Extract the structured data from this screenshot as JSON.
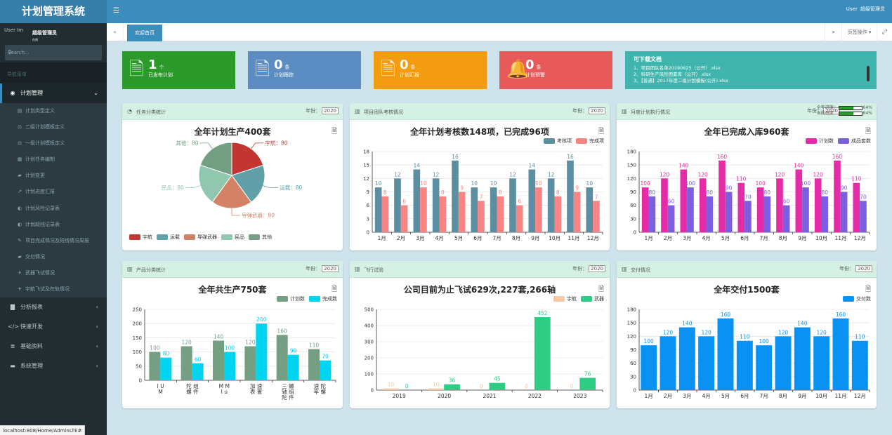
{
  "app": {
    "title": "计划管理系统"
  },
  "user": {
    "name": "超级管理员",
    "avatar_alt": "User Im",
    "header_label": "User",
    "status": "在线"
  },
  "search": {
    "placeholder": "Search..."
  },
  "nav": {
    "header": "导航菜单",
    "plan_mgmt": "计划管理",
    "sub_items": [
      {
        "label": "计划类型定义",
        "icon": "▤"
      },
      {
        "label": "二级计划模板定义",
        "icon": "⚖"
      },
      {
        "label": "一级计划模板定义",
        "icon": "⚖"
      },
      {
        "label": "计划任务编制",
        "icon": "▦"
      },
      {
        "label": "计划变更",
        "icon": "▰"
      },
      {
        "label": "计划进度汇报",
        "icon": "↗"
      },
      {
        "label": "计划风险记录表",
        "icon": "◐"
      },
      {
        "label": "计划超线记录表",
        "icon": "◐"
      },
      {
        "label": "项目完成情况及短线情况周报",
        "icon": "✎"
      },
      {
        "label": "交付情况",
        "icon": "▰"
      },
      {
        "label": "武器飞试情况",
        "icon": "✈"
      },
      {
        "label": "宇航飞试及在轨情况",
        "icon": "✈"
      }
    ],
    "bottom": [
      {
        "label": "分析报表",
        "icon": "▇"
      },
      {
        "label": "快速开发",
        "icon": "</>"
      },
      {
        "label": "基础资料",
        "icon": "≣"
      },
      {
        "label": "系统管理",
        "icon": "▬"
      }
    ]
  },
  "statusbar": {
    "url": "localhost:808/Home/AdminLTE#"
  },
  "tabs": {
    "active": "欢迎首页",
    "ops": "页签操作"
  },
  "infoboxes": [
    {
      "num": "1",
      "unit": "个",
      "label": "已发布计划",
      "color": "#2b9a2b",
      "icon": "doc"
    },
    {
      "num": "0",
      "unit": "条",
      "label": "计划跟踪",
      "color": "#5b8dc2",
      "icon": "doc"
    },
    {
      "num": "0",
      "unit": "条",
      "label": "计划汇报",
      "color": "#f39c12",
      "icon": "doc"
    },
    {
      "num": "0",
      "unit": "条",
      "label": "计划预警",
      "color": "#e85a5a",
      "icon": "bell"
    }
  ],
  "downloads": {
    "title": "可下载文档",
    "items": [
      "1、项目团队名单20190625（公开）.xlsx",
      "2、科研生产风险因素库（公开）.xlsx",
      "3、【普通】2017年度二级计划模板(公开).xlsx"
    ]
  },
  "year_label": "年份：",
  "year": "2020",
  "chart_data": [
    {
      "panel": "任务分类统计",
      "type": "pie",
      "title": "全年计划生产400套",
      "categories": [
        "宇航",
        "运载",
        "导弹武器",
        "民品",
        "其他"
      ],
      "values": [
        80,
        80,
        80,
        80,
        80
      ],
      "slice_labels": [
        "宇航：80",
        "运载：80",
        "导弹武器：80",
        "民品：80",
        "其他：80"
      ],
      "colors": [
        "#c23531",
        "#61a0a8",
        "#d48265",
        "#91c7ae",
        "#749f83"
      ]
    },
    {
      "panel": "项目团队考核情况",
      "type": "bar",
      "title": "全年计划考核数148项，已完成96项",
      "categories": [
        "1月",
        "2月",
        "3月",
        "4月",
        "5月",
        "6月",
        "7月",
        "8月",
        "9月",
        "10月",
        "11月",
        "12月"
      ],
      "series": [
        {
          "name": "考核项",
          "color": "#5b8ea0",
          "values": [
            10,
            12,
            14,
            12,
            16,
            10,
            10,
            12,
            14,
            12,
            16,
            10
          ]
        },
        {
          "name": "完成项",
          "color": "#f98484",
          "values": [
            8,
            6,
            10,
            8,
            9,
            7,
            8,
            6,
            10,
            8,
            9,
            7
          ]
        }
      ],
      "ylim": [
        0,
        18
      ],
      "yticks": [
        0,
        3,
        6,
        9,
        12,
        15,
        18
      ]
    },
    {
      "panel": "月度计划执行情况",
      "type": "bar",
      "title": "全年已完成入库960套",
      "categories": [
        "1月",
        "2月",
        "3月",
        "4月",
        "5月",
        "6月",
        "7月",
        "8月",
        "9月",
        "10月",
        "11月",
        "12月"
      ],
      "series": [
        {
          "name": "计划数",
          "color": "#e52ba8",
          "values": [
            100,
            120,
            140,
            120,
            160,
            110,
            100,
            120,
            140,
            120,
            160,
            110
          ]
        },
        {
          "name": "成品套数",
          "color": "#7b5fe0",
          "values": [
            80,
            60,
            100,
            80,
            90,
            70,
            80,
            60,
            100,
            80,
            90,
            70
          ]
        }
      ],
      "ylim": [
        0,
        180
      ],
      "yticks": [
        0,
        30,
        60,
        90,
        120,
        150,
        180
      ],
      "progress": {
        "year_label": "全年进度：",
        "year_value": 0.64,
        "year_text": "64%",
        "current_label": "当前进度：",
        "current_value": 0.64,
        "current_text": "64%"
      }
    },
    {
      "panel": "产品分类统计",
      "type": "bar",
      "title": "全年共生产750套",
      "categories": [
        [
          "I U",
          "M"
        ],
        [
          "陀 组",
          "螺 件"
        ],
        [
          "M M",
          "I u"
        ],
        [
          "加 速",
          "表 置"
        ],
        [
          "三 螺",
          "轴 组",
          "陀 件"
        ],
        [
          "速 陀",
          "率 螺"
        ]
      ],
      "series": [
        {
          "name": "计划数",
          "color": "#749f83",
          "values": [
            100,
            120,
            140,
            120,
            160,
            110
          ]
        },
        {
          "name": "完成数",
          "color": "#00d4f0",
          "values": [
            80,
            60,
            100,
            200,
            90,
            70
          ]
        }
      ],
      "ylim": [
        0,
        250
      ],
      "yticks": [
        0,
        50,
        100,
        150,
        200,
        250
      ]
    },
    {
      "panel": "飞行试验",
      "type": "bar",
      "title": "公司目前为止飞试629次,227套,266轴",
      "categories": [
        "2019",
        "2020",
        "2021",
        "2022",
        "2023"
      ],
      "series": [
        {
          "name": "宇航",
          "color": "#f4c9a4",
          "values": [
            10,
            10,
            0,
            0,
            0
          ]
        },
        {
          "name": "武器",
          "color": "#2ecc85",
          "values": [
            0,
            36,
            45,
            452,
            76
          ]
        }
      ],
      "ylim": [
        0,
        500
      ],
      "yticks": [
        0,
        100,
        200,
        300,
        400,
        500
      ]
    },
    {
      "panel": "交付情况",
      "type": "bar",
      "title": "全年交付1500套",
      "categories": [
        "1月",
        "2月",
        "3月",
        "4月",
        "5月",
        "6月",
        "7月",
        "8月",
        "9月",
        "10月",
        "11月",
        "12月"
      ],
      "series": [
        {
          "name": "交付数",
          "color": "#0a92f2",
          "values": [
            100,
            120,
            140,
            120,
            160,
            110,
            100,
            120,
            140,
            120,
            160,
            110
          ]
        }
      ],
      "ylim": [
        0,
        180
      ],
      "yticks": [
        0,
        30,
        60,
        90,
        120,
        150,
        180
      ]
    }
  ]
}
